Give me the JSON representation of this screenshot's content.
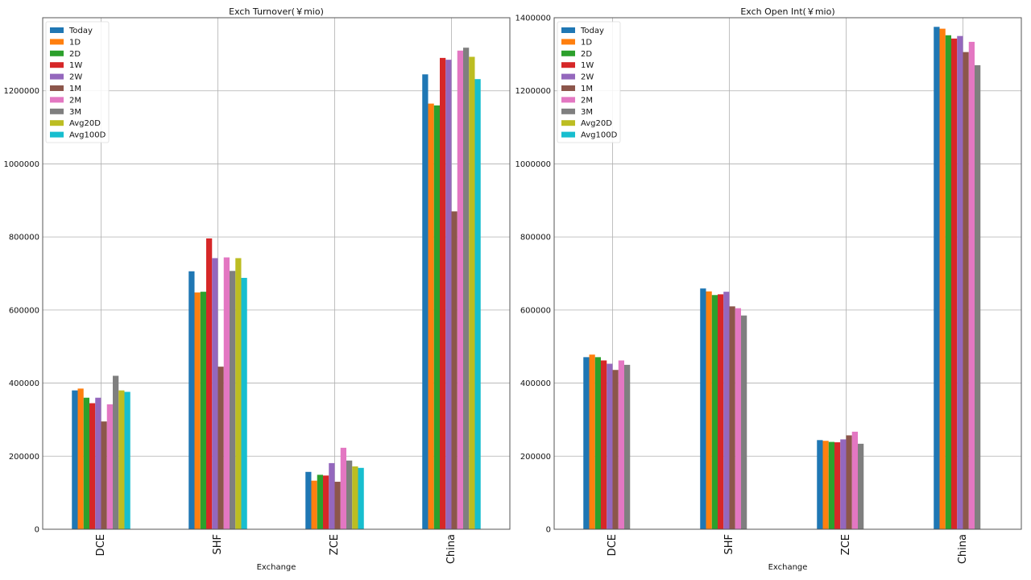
{
  "chart_data": [
    {
      "type": "bar",
      "title": "Exch Turnover(￥mio)",
      "xlabel": "Exchange",
      "ylabel": "",
      "ylim": [
        0,
        1400000
      ],
      "yticks": [
        "0",
        "200000",
        "400000",
        "600000",
        "800000",
        "1000000",
        "1200000"
      ],
      "grid": true,
      "legend_position": "top-left",
      "categories": [
        "DCE",
        "SHF",
        "ZCE",
        "China"
      ],
      "series": [
        {
          "name": "Today",
          "color": "#1f77b4",
          "values": [
            380000,
            706000,
            157000,
            1245000
          ]
        },
        {
          "name": "1D",
          "color": "#ff7f0e",
          "values": [
            385000,
            648000,
            133000,
            1165000
          ]
        },
        {
          "name": "2D",
          "color": "#2ca02c",
          "values": [
            360000,
            650000,
            149000,
            1160000
          ]
        },
        {
          "name": "1W",
          "color": "#d62728",
          "values": [
            345000,
            796000,
            147000,
            1290000
          ]
        },
        {
          "name": "2W",
          "color": "#9467bd",
          "values": [
            360000,
            742000,
            181000,
            1285000
          ]
        },
        {
          "name": "1M",
          "color": "#8c564b",
          "values": [
            295000,
            445000,
            130000,
            870000
          ]
        },
        {
          "name": "2M",
          "color": "#e377c2",
          "values": [
            342000,
            744000,
            223000,
            1310000
          ]
        },
        {
          "name": "3M",
          "color": "#7f7f7f",
          "values": [
            420000,
            707000,
            188000,
            1318000
          ]
        },
        {
          "name": "Avg20D",
          "color": "#bcbd22",
          "values": [
            380000,
            742000,
            172000,
            1293000
          ]
        },
        {
          "name": "Avg100D",
          "color": "#17becf",
          "values": [
            376000,
            688000,
            168000,
            1232000
          ]
        }
      ]
    },
    {
      "type": "bar",
      "title": "Exch Open Int(￥mio)",
      "xlabel": "Exchange",
      "ylabel": "",
      "ylim": [
        0,
        1400000
      ],
      "yticks": [
        "0",
        "200000",
        "400000",
        "600000",
        "800000",
        "1000000",
        "1200000",
        "1400000"
      ],
      "grid": true,
      "legend_position": "top-left",
      "categories": [
        "DCE",
        "SHF",
        "ZCE",
        "China"
      ],
      "series": [
        {
          "name": "Today",
          "color": "#1f77b4",
          "values": [
            471000,
            659000,
            244000,
            1375000
          ]
        },
        {
          "name": "1D",
          "color": "#ff7f0e",
          "values": [
            478000,
            651000,
            242000,
            1370000
          ]
        },
        {
          "name": "2D",
          "color": "#2ca02c",
          "values": [
            471000,
            641000,
            239000,
            1352000
          ]
        },
        {
          "name": "1W",
          "color": "#d62728",
          "values": [
            462000,
            643000,
            238000,
            1343000
          ]
        },
        {
          "name": "2W",
          "color": "#9467bd",
          "values": [
            453000,
            650000,
            246000,
            1350000
          ]
        },
        {
          "name": "1M",
          "color": "#8c564b",
          "values": [
            436000,
            610000,
            257000,
            1306000
          ]
        },
        {
          "name": "2M",
          "color": "#e377c2",
          "values": [
            462000,
            605000,
            267000,
            1334000
          ]
        },
        {
          "name": "3M",
          "color": "#7f7f7f",
          "values": [
            450000,
            585000,
            234000,
            1270000
          ]
        },
        {
          "name": "Avg20D",
          "color": "#bcbd22",
          "values": [
            null,
            null,
            null,
            null
          ]
        },
        {
          "name": "Avg100D",
          "color": "#17becf",
          "values": [
            null,
            null,
            null,
            null
          ]
        }
      ]
    }
  ]
}
